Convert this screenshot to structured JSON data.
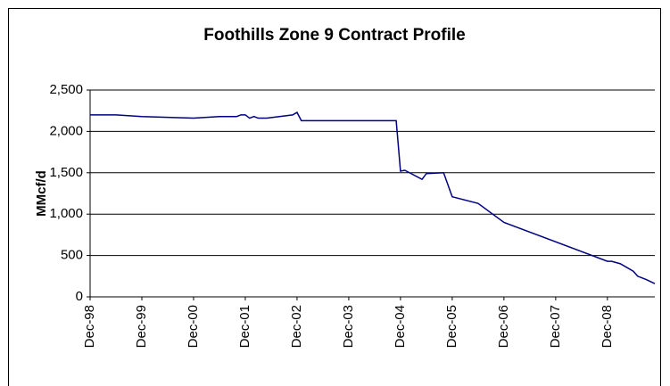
{
  "chart_data": {
    "type": "line",
    "title": "Foothills Zone 9 Contract Profile",
    "y_label": "MMcf/d",
    "series": [
      {
        "color": "#000080",
        "x": [
          "Dec-98",
          "Jun-99",
          "Dec-99",
          "Dec-00",
          "Jun-01",
          "Oct-01",
          "Nov-01",
          "Dec-01",
          "Jan-02",
          "Feb-02",
          "Mar-02",
          "May-02",
          "Nov-02",
          "Dec-02",
          "Jan-03",
          "Nov-04",
          "Dec-04",
          "Jan-05",
          "May-05",
          "Jun-05",
          "Oct-05",
          "Dec-05",
          "Jun-06",
          "Dec-06",
          "Dec-08",
          "Jan-09",
          "Mar-09",
          "Jun-09",
          "Jul-09",
          "Sep-09",
          "Nov-09"
        ],
        "values": [
          2200,
          2200,
          2180,
          2160,
          2180,
          2180,
          2200,
          2200,
          2160,
          2180,
          2160,
          2160,
          2200,
          2230,
          2130,
          2130,
          1520,
          1530,
          1420,
          1490,
          1500,
          1210,
          1130,
          900,
          430,
          430,
          400,
          310,
          250,
          210,
          160
        ]
      }
    ],
    "xlim": [
      "Dec-98",
      "Nov-09"
    ],
    "xticks": [
      "Dec-98",
      "Dec-99",
      "Dec-00",
      "Dec-01",
      "Dec-02",
      "Dec-03",
      "Dec-04",
      "Dec-05",
      "Dec-06",
      "Dec-07",
      "Dec-08"
    ],
    "ylim": [
      0,
      2500
    ],
    "yticks": [
      0,
      {
        "value": 500,
        "label": "500"
      },
      {
        "value": 1000,
        "label": "1,000"
      },
      {
        "value": 1500,
        "label": "1,500"
      },
      {
        "value": 2000,
        "label": "2,000"
      },
      {
        "value": 2500,
        "label": "2,500"
      }
    ],
    "grid": true
  }
}
